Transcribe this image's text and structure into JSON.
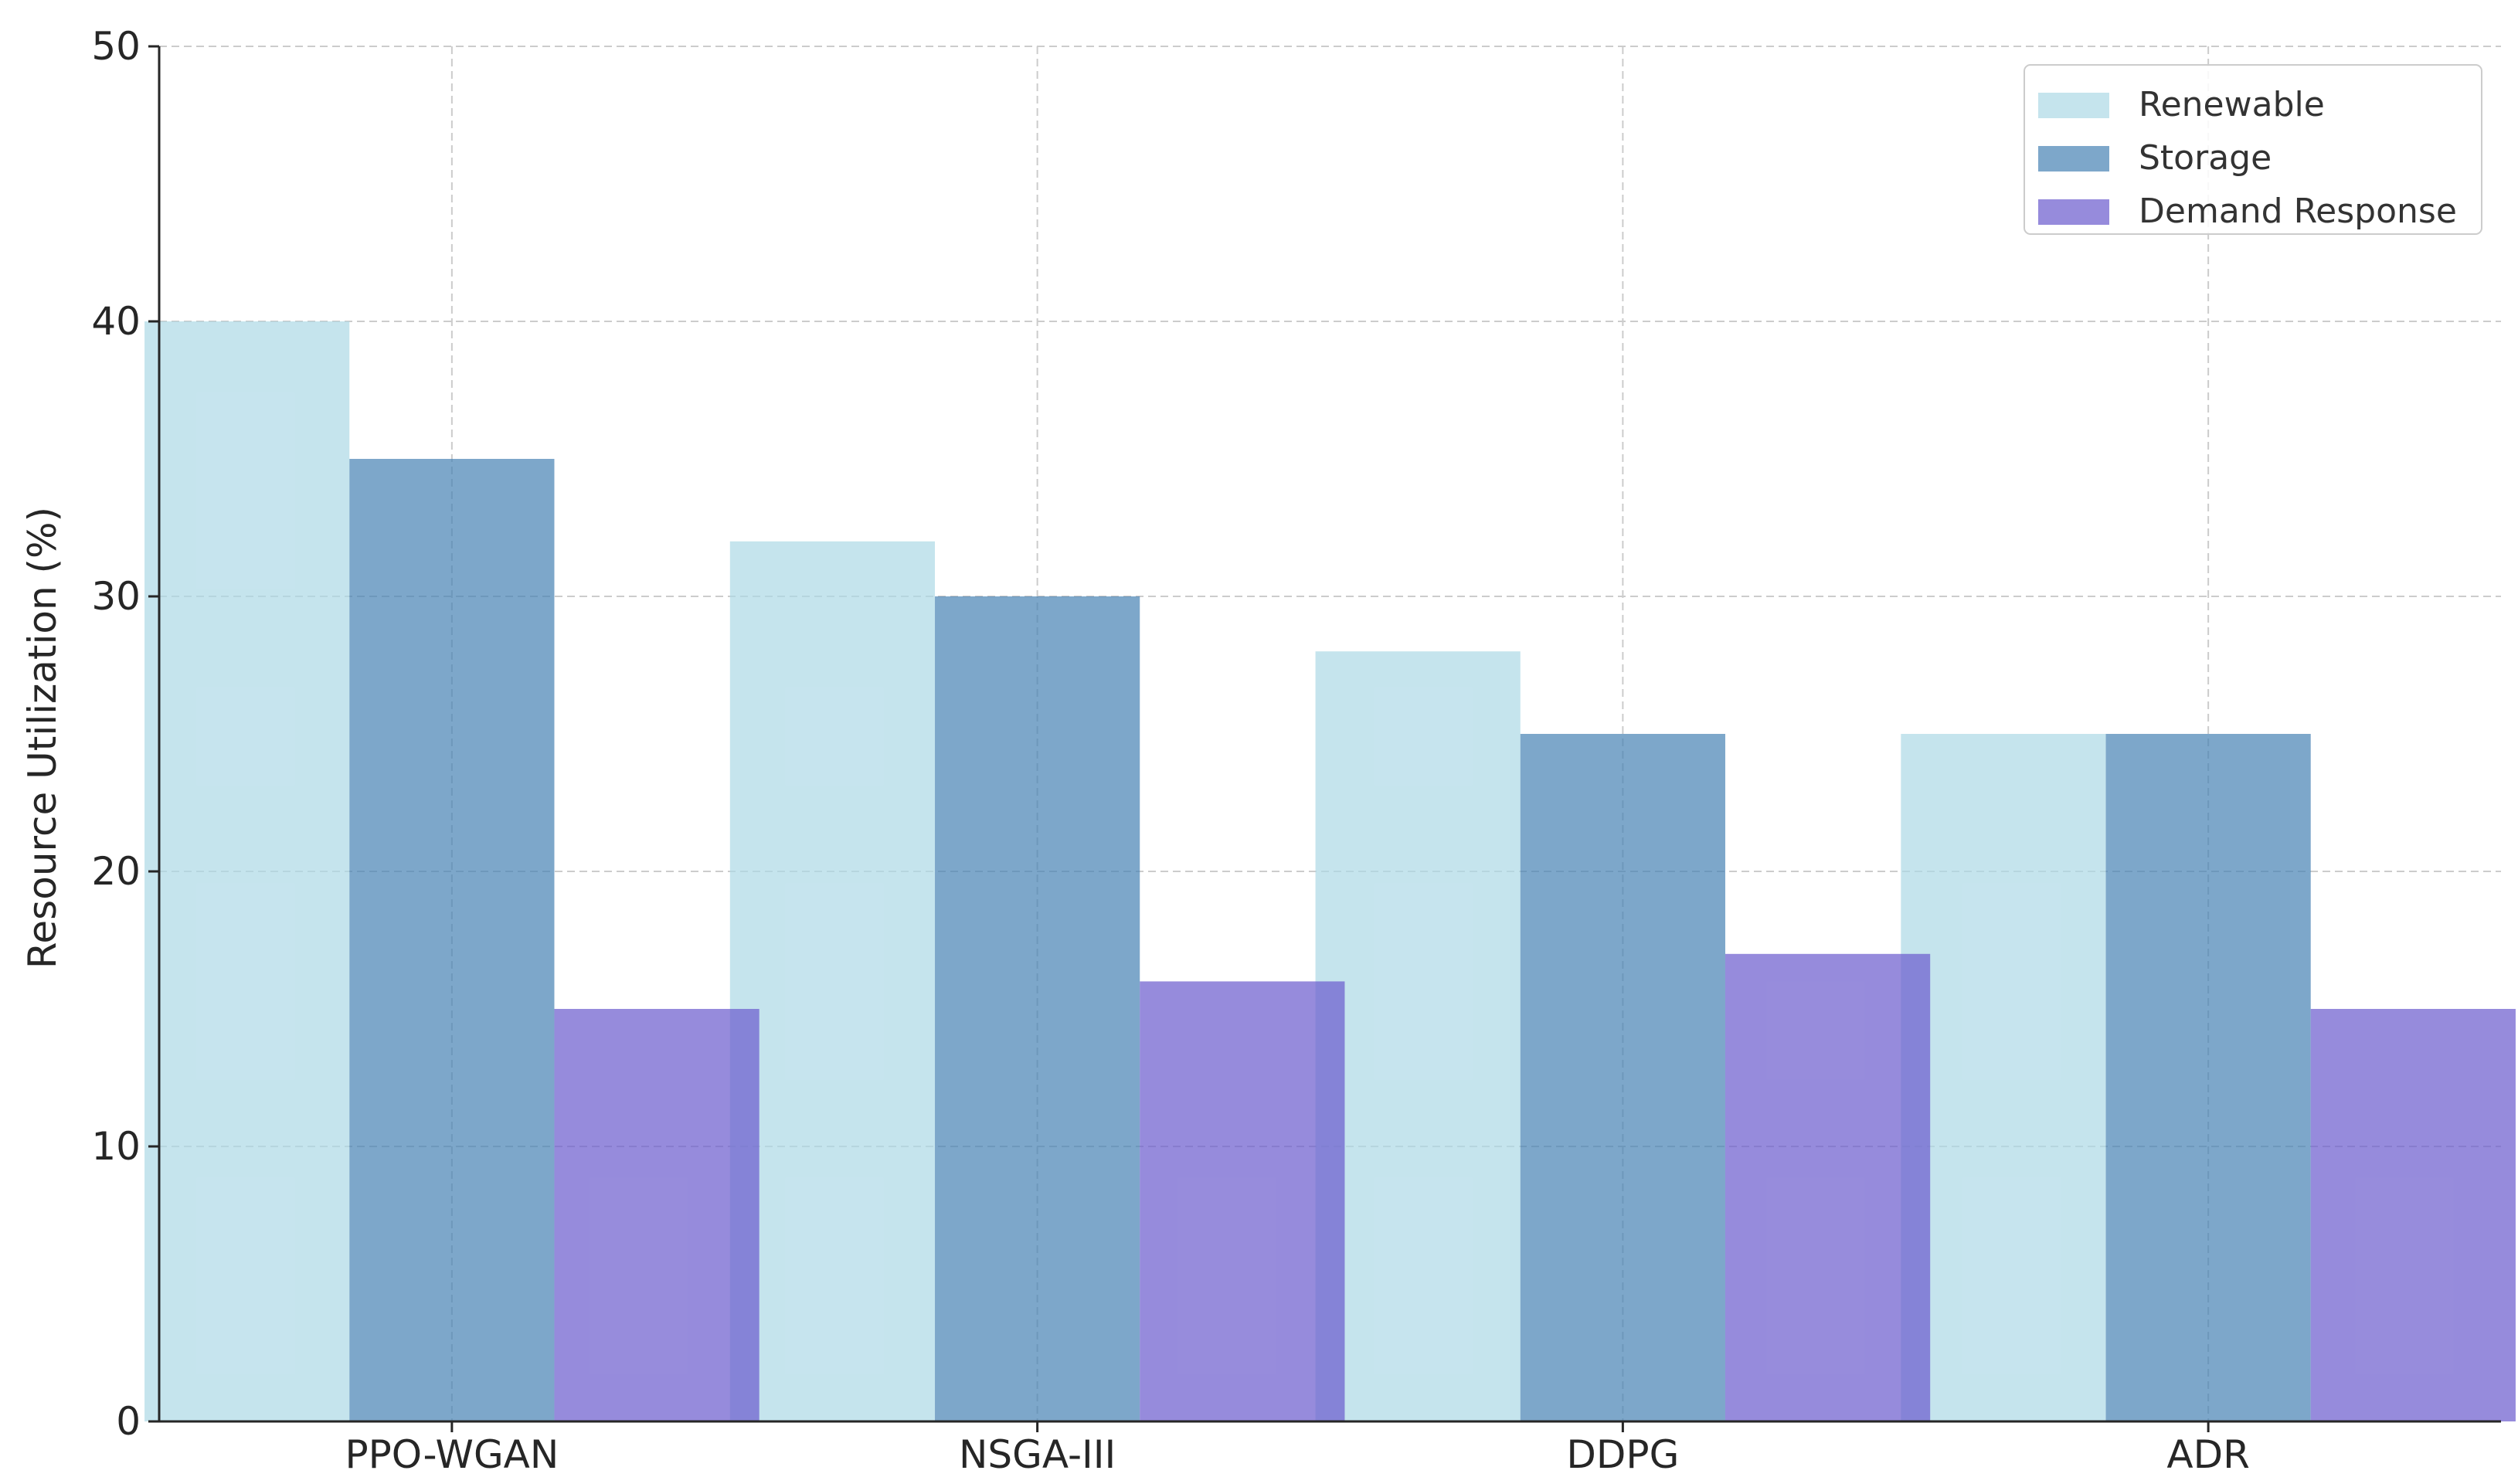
{
  "chart_data": {
    "type": "bar",
    "title": "",
    "xlabel": "",
    "ylabel": "Resource Utilization (%)",
    "categories": [
      "PPO-WGAN",
      "NSGA-III",
      "DDPG",
      "ADR"
    ],
    "series": [
      {
        "name": "Renewable",
        "values": [
          40,
          32,
          28,
          25
        ],
        "color": "#add8e6"
      },
      {
        "name": "Storage",
        "values": [
          35,
          30,
          25,
          25
        ],
        "color": "#4682b4"
      },
      {
        "name": "Demand Response",
        "values": [
          15,
          16,
          17,
          15
        ],
        "color": "#6a5acd"
      }
    ],
    "ylim": [
      0,
      50
    ],
    "yticks": [
      0,
      10,
      20,
      30,
      40,
      50
    ],
    "grid": true,
    "legend_position": "top-right",
    "bar_opacity": 0.7
  }
}
